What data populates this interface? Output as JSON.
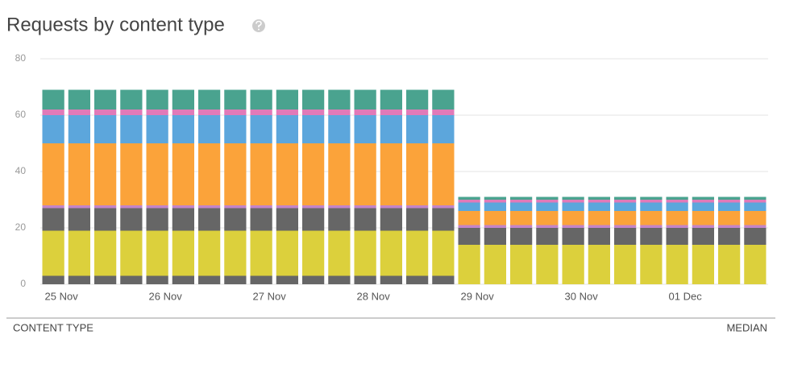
{
  "chart_data": {
    "type": "stacked_bar",
    "title": "Requests by content type",
    "categories": [
      "25 Nov",
      null,
      null,
      null,
      "26 Nov",
      null,
      null,
      null,
      "27 Nov",
      null,
      null,
      null,
      "28 Nov",
      null,
      null,
      null,
      "29 Nov",
      null,
      null,
      null,
      "30 Nov",
      null,
      null,
      null,
      "01 Dec",
      null,
      null,
      null
    ],
    "series": [
      {
        "color": "#666666",
        "values": [
          3,
          3,
          3,
          3,
          3,
          3,
          3,
          3,
          3,
          3,
          3,
          3,
          3,
          3,
          3,
          3,
          0,
          0,
          0,
          0,
          0,
          0,
          0,
          0,
          0,
          0,
          0,
          0
        ]
      },
      {
        "color": "#dcd03c",
        "values": [
          16,
          16,
          16,
          16,
          16,
          16,
          16,
          16,
          16,
          16,
          16,
          16,
          16,
          16,
          16,
          16,
          14,
          14,
          14,
          14,
          14,
          14,
          14,
          14,
          14,
          14,
          14,
          14
        ]
      },
      {
        "color": "#666666",
        "values": [
          8,
          8,
          8,
          8,
          8,
          8,
          8,
          8,
          8,
          8,
          8,
          8,
          8,
          8,
          8,
          8,
          6,
          6,
          6,
          6,
          6,
          6,
          6,
          6,
          6,
          6,
          6,
          6
        ]
      },
      {
        "color": "#c384c8",
        "values": [
          1,
          1,
          1,
          1,
          1,
          1,
          1,
          1,
          1,
          1,
          1,
          1,
          1,
          1,
          1,
          1,
          1,
          1,
          1,
          1,
          1,
          1,
          1,
          1,
          1,
          1,
          1,
          1
        ]
      },
      {
        "color": "#fba33a",
        "values": [
          22,
          22,
          22,
          22,
          22,
          22,
          22,
          22,
          22,
          22,
          22,
          22,
          22,
          22,
          22,
          22,
          5,
          5,
          5,
          5,
          5,
          5,
          5,
          5,
          5,
          5,
          5,
          5
        ]
      },
      {
        "color": "#5ca6dc",
        "values": [
          10,
          10,
          10,
          10,
          10,
          10,
          10,
          10,
          10,
          10,
          10,
          10,
          10,
          10,
          10,
          10,
          3,
          3,
          3,
          3,
          3,
          3,
          3,
          3,
          3,
          3,
          3,
          3
        ]
      },
      {
        "color": "#e17ab8",
        "values": [
          2,
          2,
          2,
          2,
          2,
          2,
          2,
          2,
          2,
          2,
          2,
          2,
          2,
          2,
          2,
          2,
          1,
          1,
          1,
          1,
          1,
          1,
          1,
          1,
          1,
          1,
          1,
          1
        ]
      },
      {
        "color": "#4aa38f",
        "values": [
          7,
          7,
          7,
          7,
          7,
          7,
          7,
          7,
          7,
          7,
          7,
          7,
          7,
          7,
          7,
          7,
          1,
          1,
          1,
          1,
          1,
          1,
          1,
          1,
          1,
          1,
          1,
          1
        ]
      }
    ],
    "ylim": [
      0,
      80
    ],
    "yticks": [
      0,
      20,
      40,
      60,
      80
    ],
    "grid": true
  },
  "table": {
    "columns": [
      "CONTENT TYPE",
      "MEDIAN"
    ]
  }
}
